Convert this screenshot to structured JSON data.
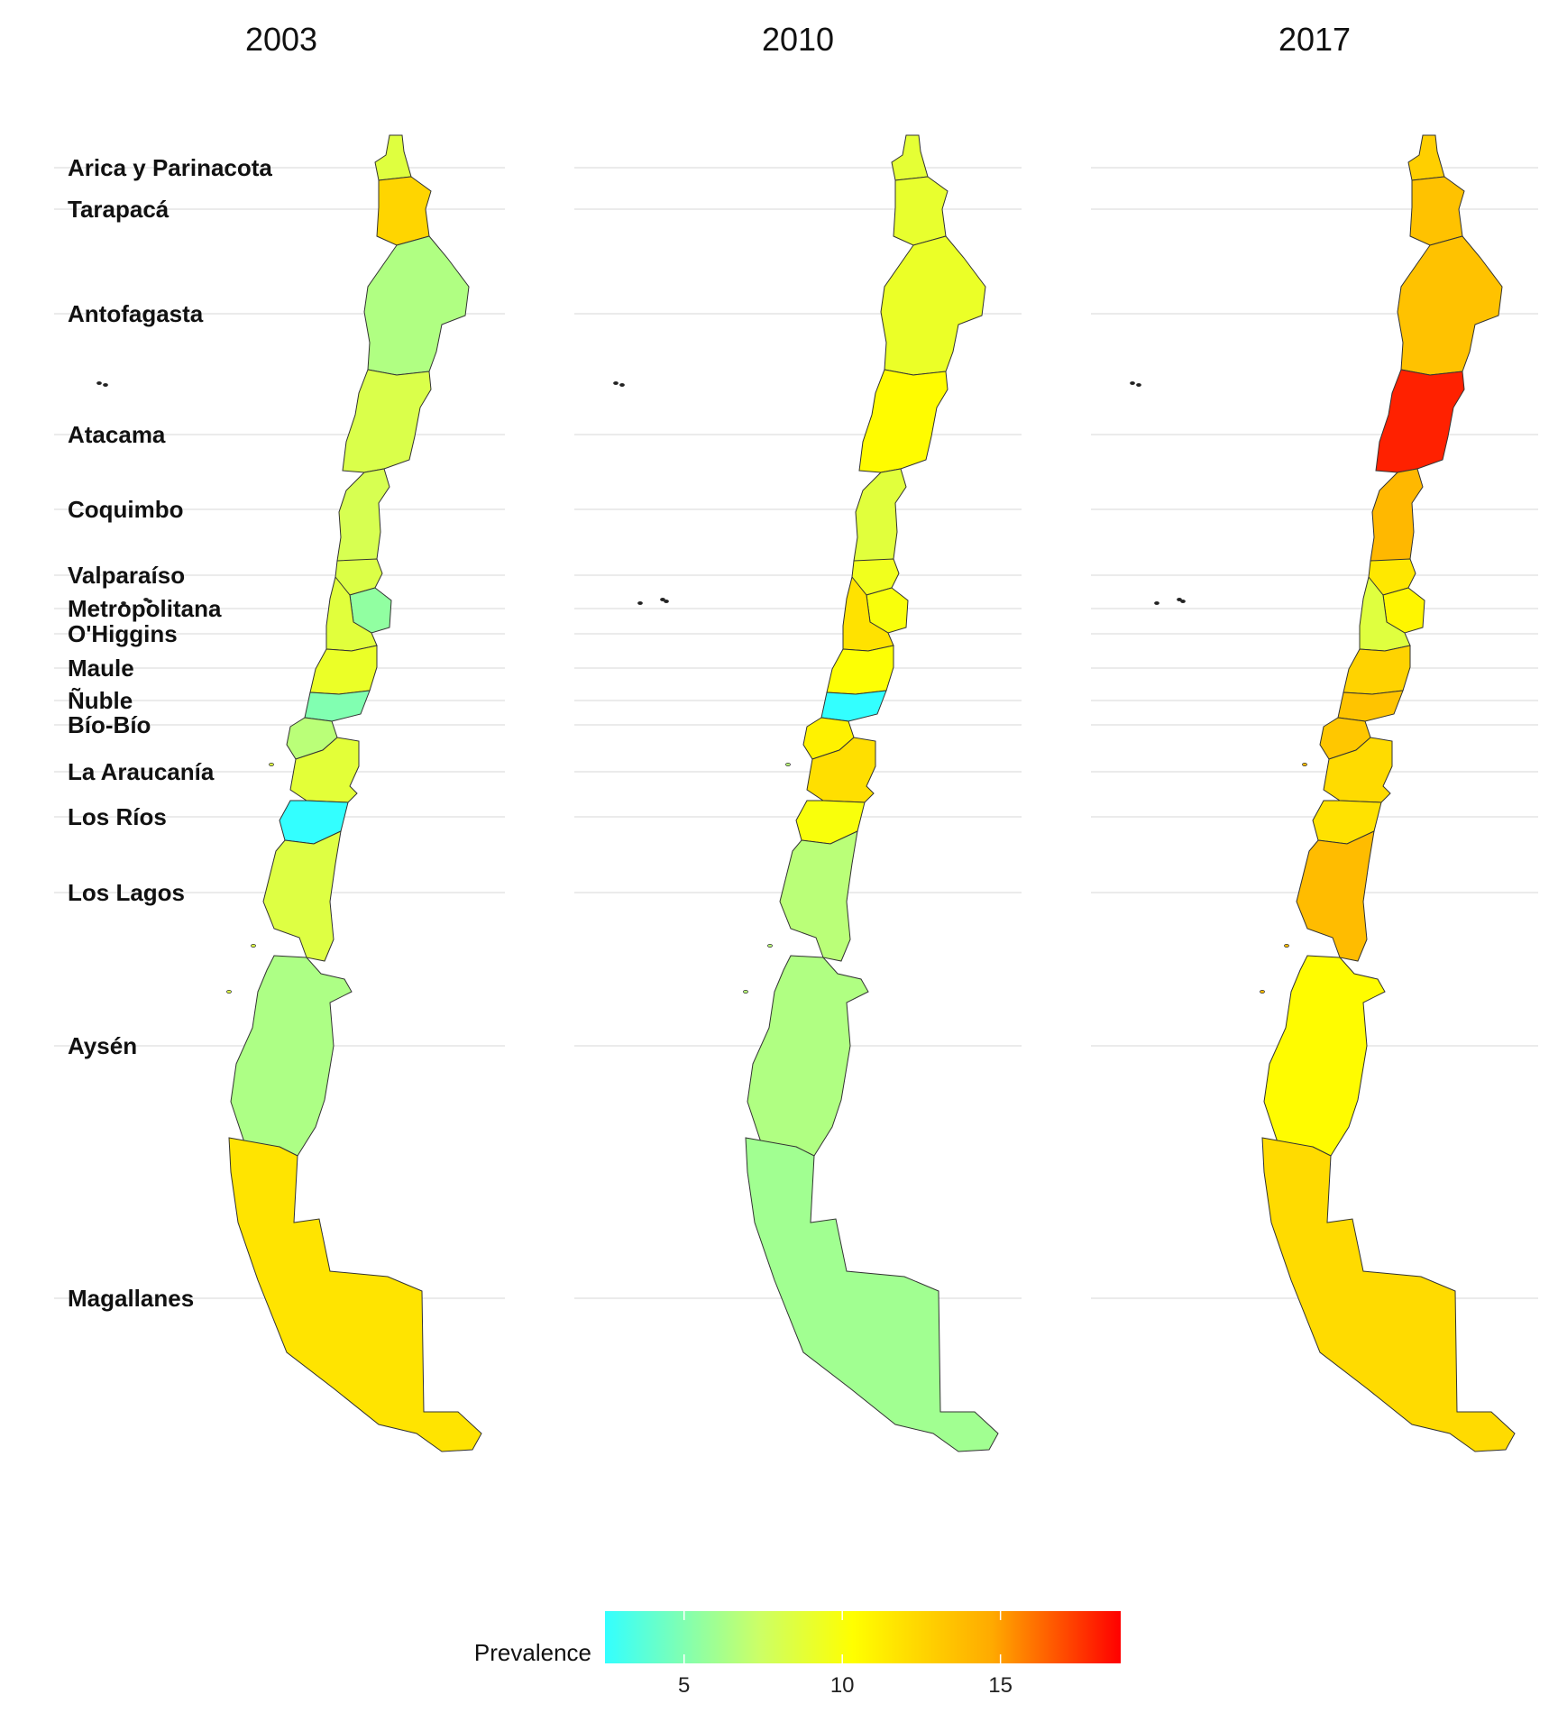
{
  "chart_data": {
    "type": "choropleth",
    "panels": [
      "2003",
      "2010",
      "2017"
    ],
    "regions": [
      "Arica y Parinacota",
      "Tarapacá",
      "Antofagasta",
      "Atacama",
      "Coquimbo",
      "Valparaíso",
      "Metropolitana",
      "O'Higgins",
      "Maule",
      "Ñuble",
      "Bío-Bío",
      "La Araucanía",
      "Los Ríos",
      "Los Lagos",
      "Aysén",
      "Magallanes"
    ],
    "values": {
      "2003": [
        8.5,
        12.5,
        6.5,
        8.2,
        8.0,
        8.3,
        5.5,
        8.6,
        9.2,
        5.0,
        6.8,
        8.7,
        2.5,
        8.4,
        6.4,
        11.7
      ],
      "2010": [
        8.8,
        9.0,
        9.2,
        10.5,
        8.6,
        9.5,
        10.0,
        11.8,
        10.2,
        2.5,
        11.0,
        12.0,
        10.0,
        6.8,
        6.5,
        6.0
      ],
      "2017": [
        12.8,
        13.5,
        13.5,
        18.0,
        14.0,
        11.5,
        10.8,
        8.5,
        12.6,
        13.4,
        13.2,
        12.2,
        11.8,
        13.8,
        10.5,
        12.2
      ]
    },
    "legend": {
      "title": "Prevalence",
      "min": 2.5,
      "max": 18.8,
      "ticks": [
        5,
        10,
        15
      ],
      "colors": [
        "#33ffff",
        "#ffff00",
        "#ff0000"
      ],
      "placement": "bottom"
    },
    "grid": true
  }
}
